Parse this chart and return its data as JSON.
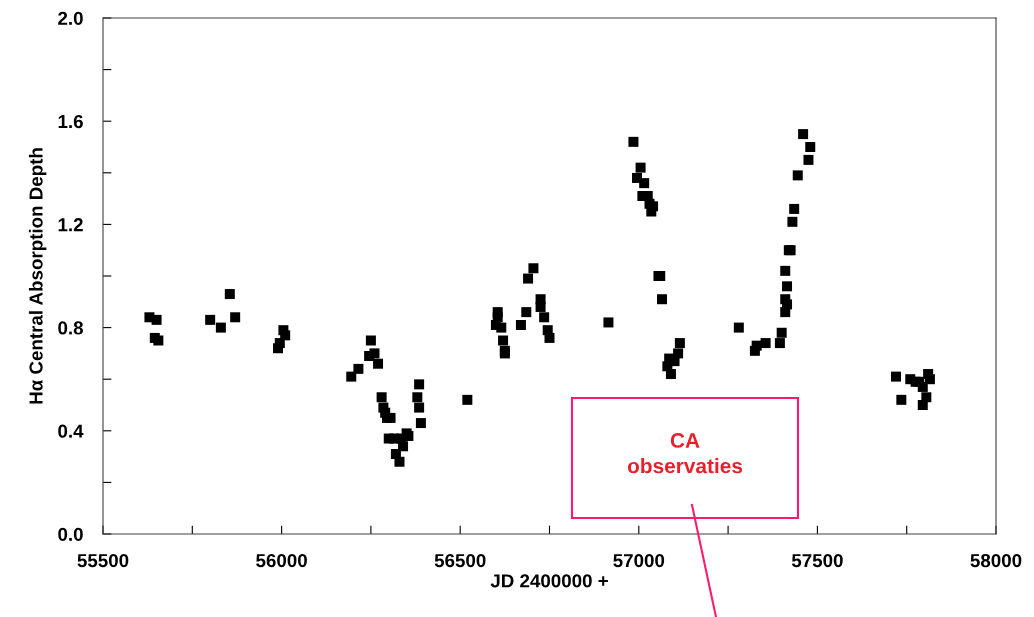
{
  "chart_data": {
    "type": "scatter",
    "xlabel": "JD 2400000 +",
    "ylabel": "Hα Central Absorption Depth",
    "x": [
      55630,
      55650,
      55645,
      55655,
      55800,
      55830,
      55855,
      55870,
      55990,
      55995,
      56005,
      56010,
      56195,
      56215,
      56250,
      56245,
      56260,
      56270,
      56280,
      56285,
      56290,
      56295,
      56305,
      56300,
      56315,
      56335,
      56350,
      56355,
      56340,
      56320,
      56330,
      56385,
      56380,
      56385,
      56390,
      56520,
      56705,
      56690,
      56605,
      56605,
      56600,
      56615,
      56620,
      56625,
      56625,
      56670,
      56685,
      56725,
      56725,
      56735,
      56745,
      56750,
      56915,
      56985,
      57005,
      56995,
      57015,
      57010,
      57025,
      57030,
      57035,
      57040,
      57055,
      57060,
      57065,
      57115,
      57110,
      57085,
      57080,
      57090,
      57100,
      57460,
      57480,
      57475,
      57445,
      57435,
      57430,
      57425,
      57420,
      57410,
      57415,
      57410,
      57415,
      57410,
      57400,
      57395,
      57280,
      57355,
      57330,
      57325,
      57720,
      57760,
      57775,
      57785,
      57795,
      57810,
      57815,
      57735,
      57805,
      57795
    ],
    "values": [
      0.84,
      0.83,
      0.76,
      0.75,
      0.83,
      0.8,
      0.93,
      0.84,
      0.72,
      0.74,
      0.79,
      0.77,
      0.61,
      0.64,
      0.75,
      0.69,
      0.7,
      0.66,
      0.53,
      0.49,
      0.47,
      0.45,
      0.45,
      0.37,
      0.37,
      0.37,
      0.39,
      0.38,
      0.34,
      0.31,
      0.28,
      0.58,
      0.53,
      0.49,
      0.43,
      0.52,
      1.03,
      0.99,
      0.86,
      0.84,
      0.81,
      0.8,
      0.75,
      0.71,
      0.7,
      0.81,
      0.86,
      0.91,
      0.88,
      0.84,
      0.79,
      0.76,
      0.82,
      1.52,
      1.42,
      1.38,
      1.36,
      1.31,
      1.31,
      1.28,
      1.25,
      1.27,
      1.0,
      1.0,
      0.91,
      0.74,
      0.7,
      0.68,
      0.65,
      0.62,
      0.67,
      1.55,
      1.5,
      1.45,
      1.39,
      1.26,
      1.21,
      1.1,
      1.1,
      1.02,
      0.96,
      0.91,
      0.89,
      0.86,
      0.78,
      0.74,
      0.8,
      0.74,
      0.73,
      0.71,
      0.61,
      0.6,
      0.59,
      0.59,
      0.57,
      0.62,
      0.6,
      0.52,
      0.53,
      0.5
    ],
    "color": "#000000",
    "marker": "square",
    "grid": false,
    "legend": false,
    "xlim": [
      55500,
      58000
    ],
    "xticks": [
      55500,
      {
        "value": 55750,
        "label": null
      },
      56000,
      {
        "value": 56250,
        "label": null
      },
      56500,
      {
        "value": 56750,
        "label": null
      },
      57000,
      {
        "value": 57250,
        "label": null
      },
      57500,
      {
        "value": 57750,
        "label": null
      },
      58000
    ],
    "ylim": [
      0,
      2.0
    ],
    "yticks": [
      {
        "value": 0,
        "label": "0.0"
      },
      {
        "value": 0.2,
        "label": null
      },
      {
        "value": 0.4,
        "label": "0.4"
      },
      {
        "value": 0.6,
        "label": null
      },
      {
        "value": 0.8,
        "label": "0.8"
      },
      {
        "value": 1.0,
        "label": null
      },
      {
        "value": 1.2,
        "label": "1.2"
      },
      {
        "value": 1.4,
        "label": null
      },
      {
        "value": 1.6,
        "label": "1.6"
      },
      {
        "value": 1.8,
        "label": null
      },
      {
        "value": 2.0,
        "label": "2.0"
      }
    ],
    "annotations": [
      "CA\nobservaties"
    ]
  }
}
